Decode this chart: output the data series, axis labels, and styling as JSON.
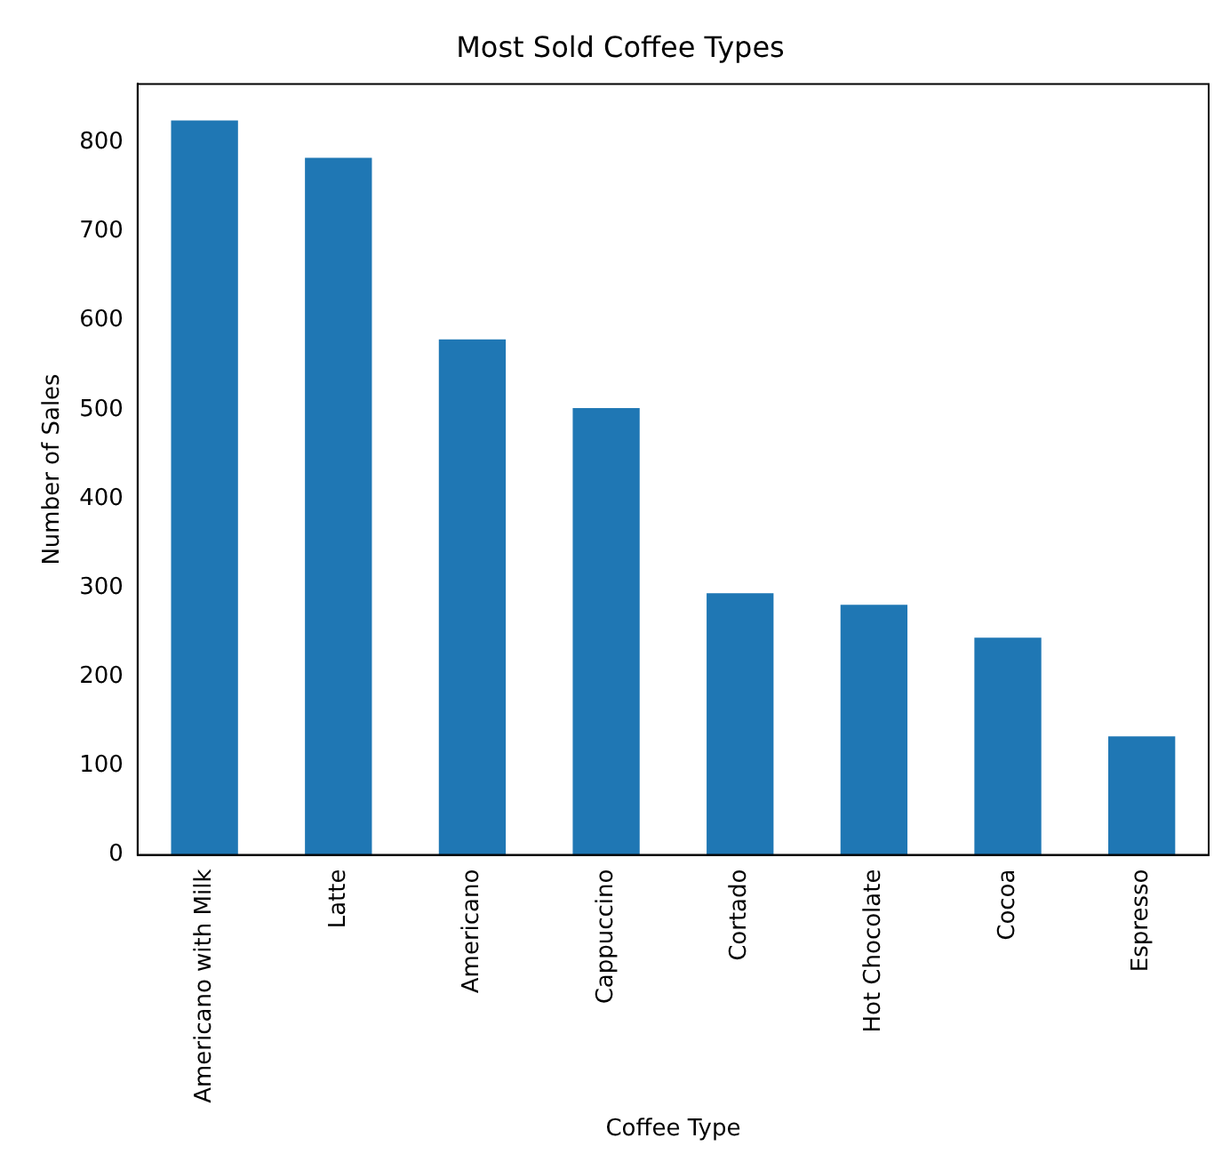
{
  "chart_data": {
    "type": "bar",
    "title": "Most Sold Coffee Types",
    "xlabel": "Coffee Type",
    "ylabel": "Number of Sales",
    "categories": [
      "Americano with Milk",
      "Latte",
      "Americano",
      "Cappuccino",
      "Cortado",
      "Hot Chocolate",
      "Cocoa",
      "Espresso"
    ],
    "values": [
      825,
      783,
      579,
      502,
      294,
      281,
      244,
      133
    ],
    "color": "#1f77b4",
    "ylim": [
      0,
      866
    ],
    "yticks": [
      0,
      100,
      200,
      300,
      400,
      500,
      600,
      700,
      800
    ],
    "grid": false,
    "legend": false
  }
}
